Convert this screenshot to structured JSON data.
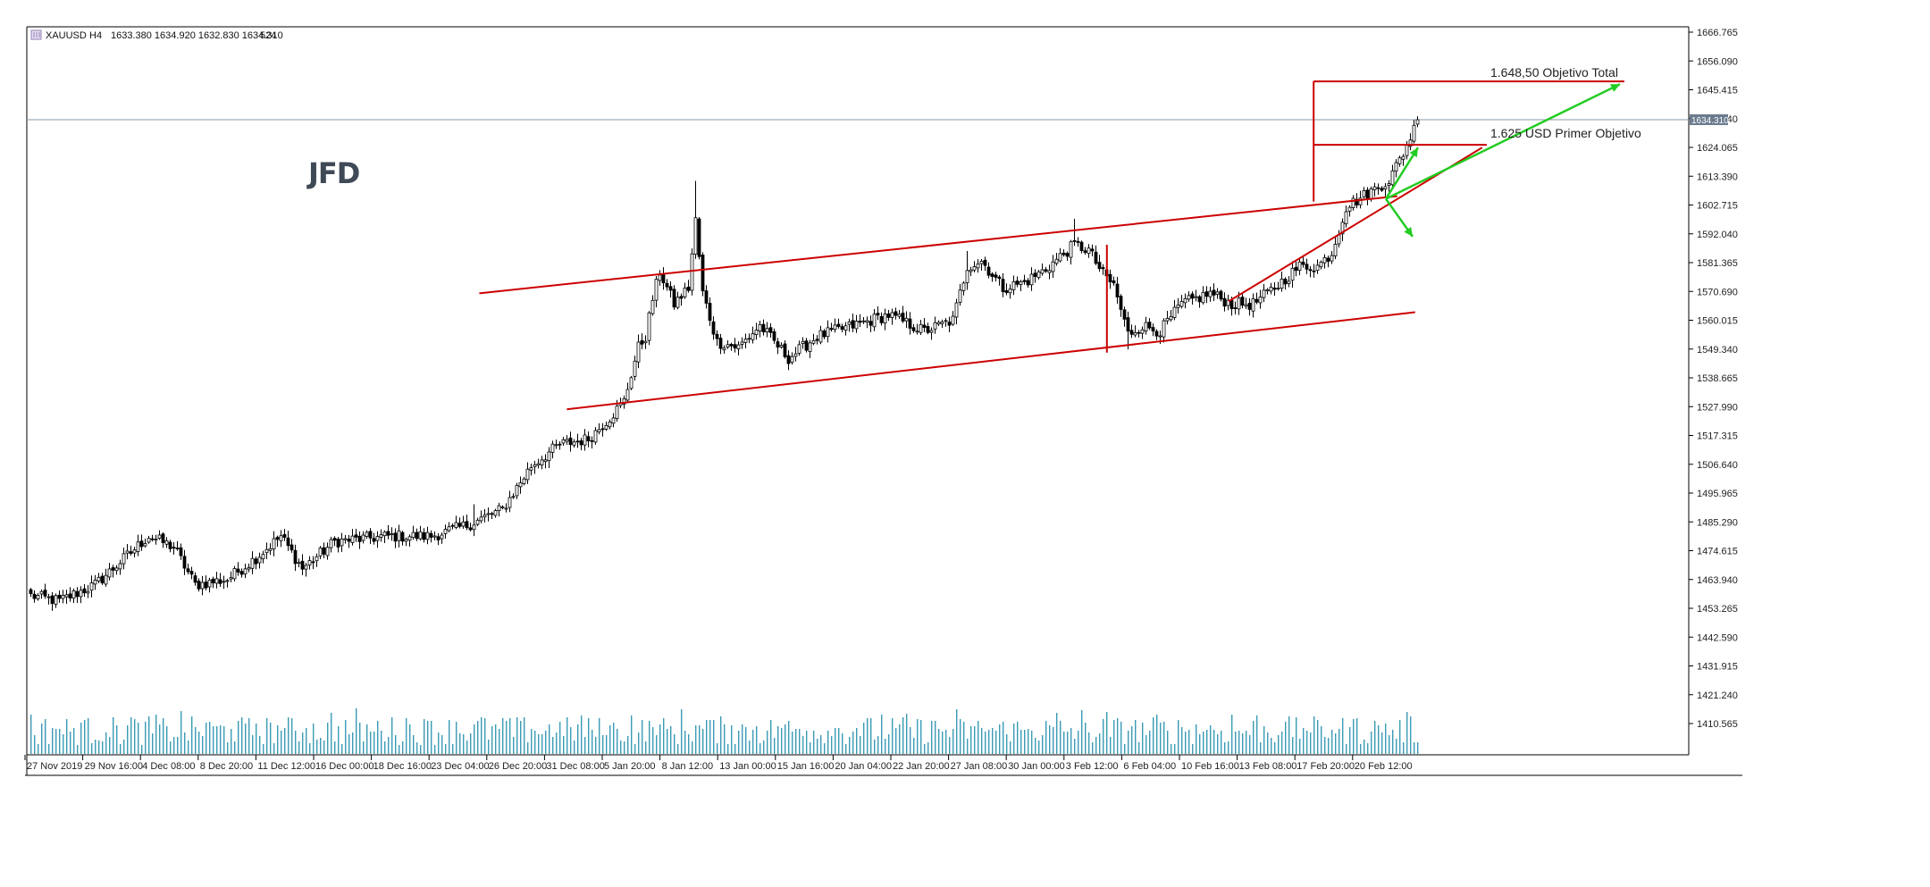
{
  "header": {
    "symbol": "XAUUSD",
    "timeframe": "H4",
    "ohlc": "1633.380 1634.920 1632.830 1634.310",
    "volume": "524"
  },
  "logo_text": "JFD",
  "price_tag": "1634.310",
  "annotations": {
    "total_target": "1.648,50 Objetivo Total",
    "first_target": "1.625 USD Primer   Objetivo"
  },
  "colors": {
    "candle": "#000000",
    "volume": "#3a9bb5",
    "trendline": "#cc0000",
    "arrow": "#22cc22",
    "current_price_line": "#8a98a8",
    "price_tag_bg": "#6b7b8e"
  },
  "chart_data": {
    "type": "candlestick",
    "title": "",
    "xlabel": "",
    "ylabel": "",
    "ylim": [
      1399.89,
      1669.0
    ],
    "grid": false,
    "y_ticks": [
      "1666.765",
      "1656.090",
      "1645.415",
      "1634.740",
      "1624.065",
      "1613.390",
      "1602.715",
      "1592.040",
      "1581.365",
      "1570.690",
      "1560.015",
      "1549.340",
      "1538.665",
      "1527.990",
      "1517.315",
      "1506.640",
      "1495.965",
      "1485.290",
      "1474.615",
      "1463.940",
      "1453.265",
      "1442.590",
      "1431.915",
      "1421.240",
      "1410.565"
    ],
    "x_ticks": [
      "27 Nov 2019",
      "29 Nov 16:00",
      "4 Dec 08:00",
      "8 Dec 20:00",
      "11 Dec 12:00",
      "16 Dec 00:00",
      "18 Dec 16:00",
      "23 Dec 04:00",
      "26 Dec 20:00",
      "31 Dec 08:00",
      "5 Jan 20:00",
      "8 Jan 12:00",
      "13 Jan 00:00",
      "15 Jan 16:00",
      "20 Jan 04:00",
      "22 Jan 20:00",
      "27 Jan 08:00",
      "30 Jan 00:00",
      "3 Feb 12:00",
      "6 Feb 04:00",
      "10 Feb 16:00",
      "13 Feb 08:00",
      "17 Feb 20:00",
      "20 Feb 12:00"
    ],
    "price_anchors": [
      [
        0,
        1458
      ],
      [
        8,
        1456
      ],
      [
        18,
        1462
      ],
      [
        28,
        1474
      ],
      [
        33,
        1480
      ],
      [
        40,
        1476
      ],
      [
        46,
        1462
      ],
      [
        55,
        1464
      ],
      [
        63,
        1472
      ],
      [
        70,
        1480
      ],
      [
        76,
        1468
      ],
      [
        85,
        1478
      ],
      [
        100,
        1480
      ],
      [
        112,
        1480
      ],
      [
        122,
        1484
      ],
      [
        132,
        1490
      ],
      [
        140,
        1506
      ],
      [
        148,
        1514
      ],
      [
        156,
        1516
      ],
      [
        162,
        1524
      ],
      [
        166,
        1530
      ],
      [
        170,
        1550
      ],
      [
        172,
        1554
      ],
      [
        174,
        1568
      ],
      [
        176,
        1578
      ],
      [
        180,
        1566
      ],
      [
        184,
        1572
      ],
      [
        186,
        1597
      ],
      [
        188,
        1570
      ],
      [
        192,
        1552
      ],
      [
        198,
        1550
      ],
      [
        204,
        1558
      ],
      [
        212,
        1546
      ],
      [
        220,
        1554
      ],
      [
        230,
        1558
      ],
      [
        240,
        1562
      ],
      [
        250,
        1556
      ],
      [
        258,
        1560
      ],
      [
        262,
        1580
      ],
      [
        266,
        1582
      ],
      [
        272,
        1572
      ],
      [
        278,
        1574
      ],
      [
        284,
        1579
      ],
      [
        292,
        1588
      ],
      [
        296,
        1586
      ],
      [
        300,
        1577
      ],
      [
        303,
        1573
      ],
      [
        307,
        1555
      ],
      [
        311,
        1558
      ],
      [
        316,
        1556
      ],
      [
        322,
        1566
      ],
      [
        330,
        1570
      ],
      [
        336,
        1566
      ],
      [
        342,
        1566
      ],
      [
        348,
        1572
      ],
      [
        355,
        1580
      ],
      [
        360,
        1580
      ],
      [
        364,
        1585
      ],
      [
        368,
        1602
      ],
      [
        374,
        1607
      ],
      [
        380,
        1612
      ],
      [
        384,
        1622
      ],
      [
        388,
        1634
      ]
    ],
    "patterns": {
      "channel_upper": {
        "from": [
          "31 Dec 08:00",
          1570.0
        ],
        "to": [
          "20 Feb 12:00",
          1606.0
        ]
      },
      "channel_lower": {
        "from": [
          "31 Dec 08:00",
          1527.0
        ],
        "to": [
          "20 Feb 12:00",
          1563.0
        ]
      },
      "rising_support": {
        "from": [
          "10 Feb 16:00",
          1567.0
        ],
        "to": [
          "20 Feb 12:00",
          1624.0
        ]
      },
      "channel_height": {
        "at": "3 Feb 12:00",
        "from": 1588.0,
        "to": 1548.0
      },
      "target_height": {
        "at": "17 Feb 20:00",
        "from": 1604.0,
        "to": 1648.5
      },
      "first_target_level": 1625,
      "total_target_level": 1648.5
    },
    "last_close": 1634.31
  }
}
